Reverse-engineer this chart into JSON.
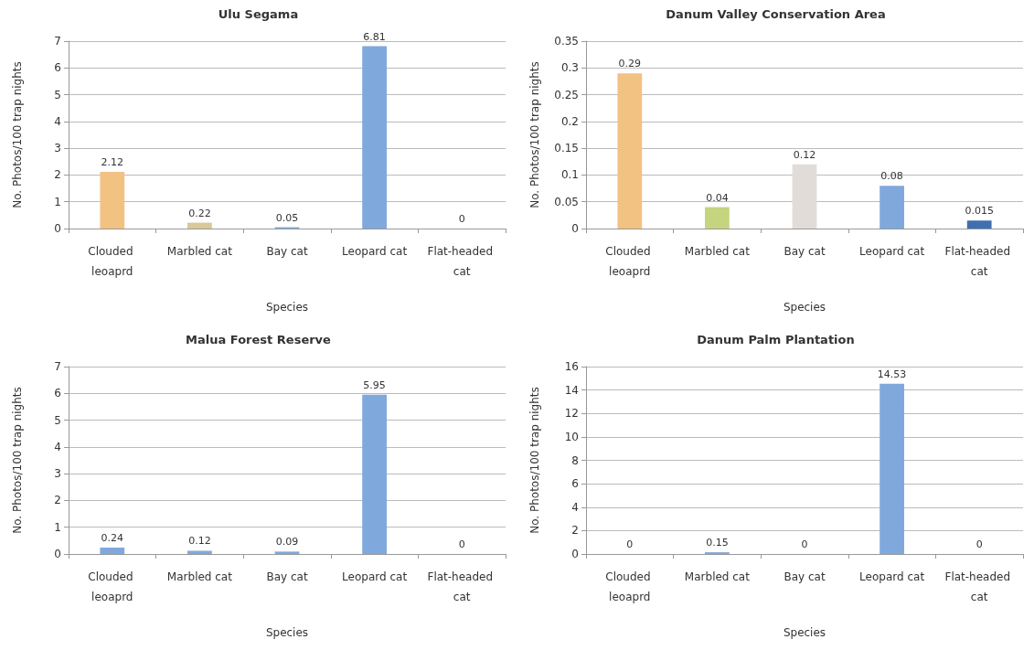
{
  "chart_data": [
    {
      "type": "bar",
      "title": "Ulu Segama",
      "xlabel": "Species",
      "ylabel": "No. Photos/100 trap nights",
      "categories": [
        "Clouded leoaprd",
        "Marbled cat",
        "Bay cat",
        "Leopard cat",
        "Flat-headed cat"
      ],
      "values": [
        2.12,
        0.22,
        0.05,
        6.81,
        0
      ],
      "colors": [
        "#f2c283",
        "#d8c89a",
        "#7fa9dc",
        "#7fa9dc",
        "#7fa9dc"
      ],
      "ylim": [
        0,
        7
      ],
      "yticks": [
        0,
        1,
        2,
        3,
        4,
        5,
        6,
        7
      ],
      "grid": "y",
      "data_labels": true
    },
    {
      "type": "bar",
      "title": "Danum Valley Conservation Area",
      "xlabel": "Species",
      "ylabel": "No. Photos/100 trap nights",
      "categories": [
        "Clouded leoaprd",
        "Marbled cat",
        "Bay cat",
        "Leopard cat",
        "Flat-headed cat"
      ],
      "values": [
        0.29,
        0.04,
        0.12,
        0.08,
        0.015
      ],
      "colors": [
        "#f2c283",
        "#c5d47e",
        "#e2dcd8",
        "#7fa9dc",
        "#3f6fae"
      ],
      "ylim": [
        0,
        0.35
      ],
      "yticks": [
        0,
        0.05,
        0.1,
        0.15,
        0.2,
        0.25,
        0.3,
        0.35
      ],
      "grid": "y",
      "data_labels": true
    },
    {
      "type": "bar",
      "title": "Malua Forest Reserve",
      "xlabel": "Species",
      "ylabel": "No. Photos/100 trap nights",
      "categories": [
        "Clouded leoaprd",
        "Marbled cat",
        "Bay cat",
        "Leopard cat",
        "Flat-headed cat"
      ],
      "values": [
        0.24,
        0.12,
        0.09,
        5.95,
        0
      ],
      "colors": [
        "#7fa9dc",
        "#7fa9dc",
        "#7fa9dc",
        "#7fa9dc",
        "#7fa9dc"
      ],
      "ylim": [
        0,
        7
      ],
      "yticks": [
        0,
        1,
        2,
        3,
        4,
        5,
        6,
        7
      ],
      "grid": "y",
      "data_labels": true
    },
    {
      "type": "bar",
      "title": "Danum Palm Plantation",
      "xlabel": "Species",
      "ylabel": "No. Photos/100 trap nights",
      "categories": [
        "Clouded leoaprd",
        "Marbled cat",
        "Bay cat",
        "Leopard cat",
        "Flat-headed cat"
      ],
      "values": [
        0,
        0.15,
        0,
        14.53,
        0
      ],
      "colors": [
        "#7fa9dc",
        "#7fa9dc",
        "#7fa9dc",
        "#7fa9dc",
        "#7fa9dc"
      ],
      "ylim": [
        0,
        16
      ],
      "yticks": [
        0,
        2,
        4,
        6,
        8,
        10,
        12,
        14,
        16
      ],
      "grid": "y",
      "data_labels": true
    }
  ]
}
